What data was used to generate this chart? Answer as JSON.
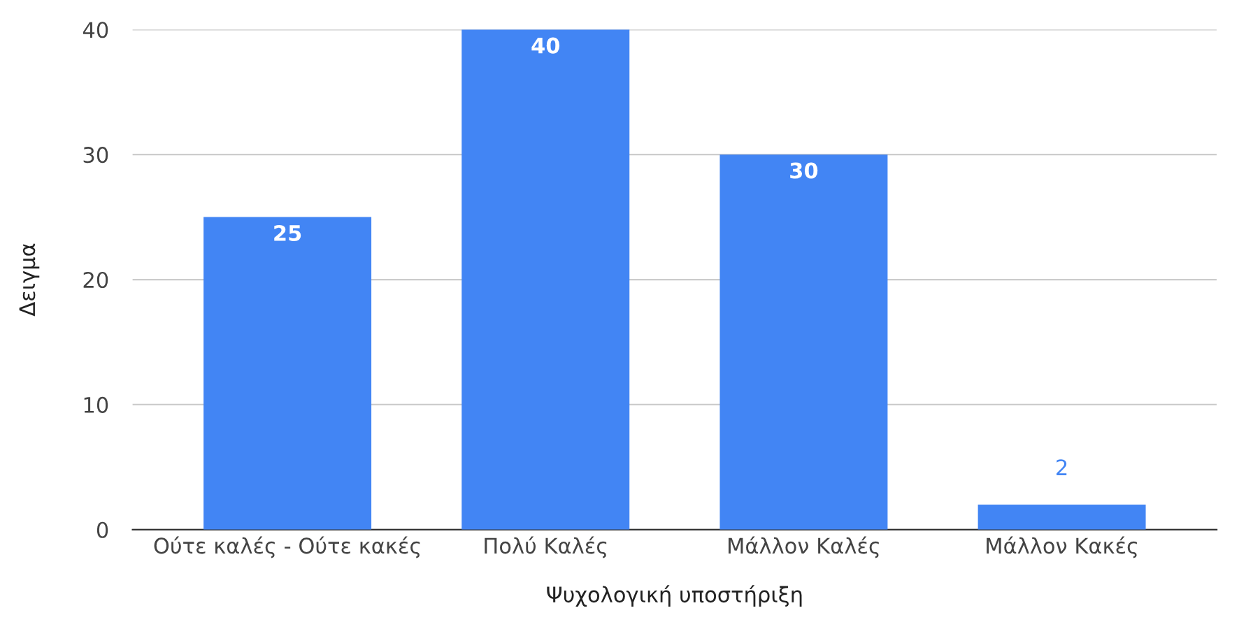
{
  "chart_data": {
    "type": "bar",
    "xlabel": "Ψυχολογική υποστήριξη",
    "ylabel": "Δειγμα",
    "categories": [
      "Ούτε καλές - Ούτε κακές",
      "Πολύ Καλές",
      "Μάλλον Καλές",
      "Μάλλον Κακές"
    ],
    "values": [
      25,
      40,
      30,
      2
    ],
    "color": "#4285f4",
    "ylim": [
      0,
      40
    ],
    "yticks": [
      0,
      10,
      20,
      30,
      40
    ],
    "grid": "y",
    "data_labels": true
  }
}
